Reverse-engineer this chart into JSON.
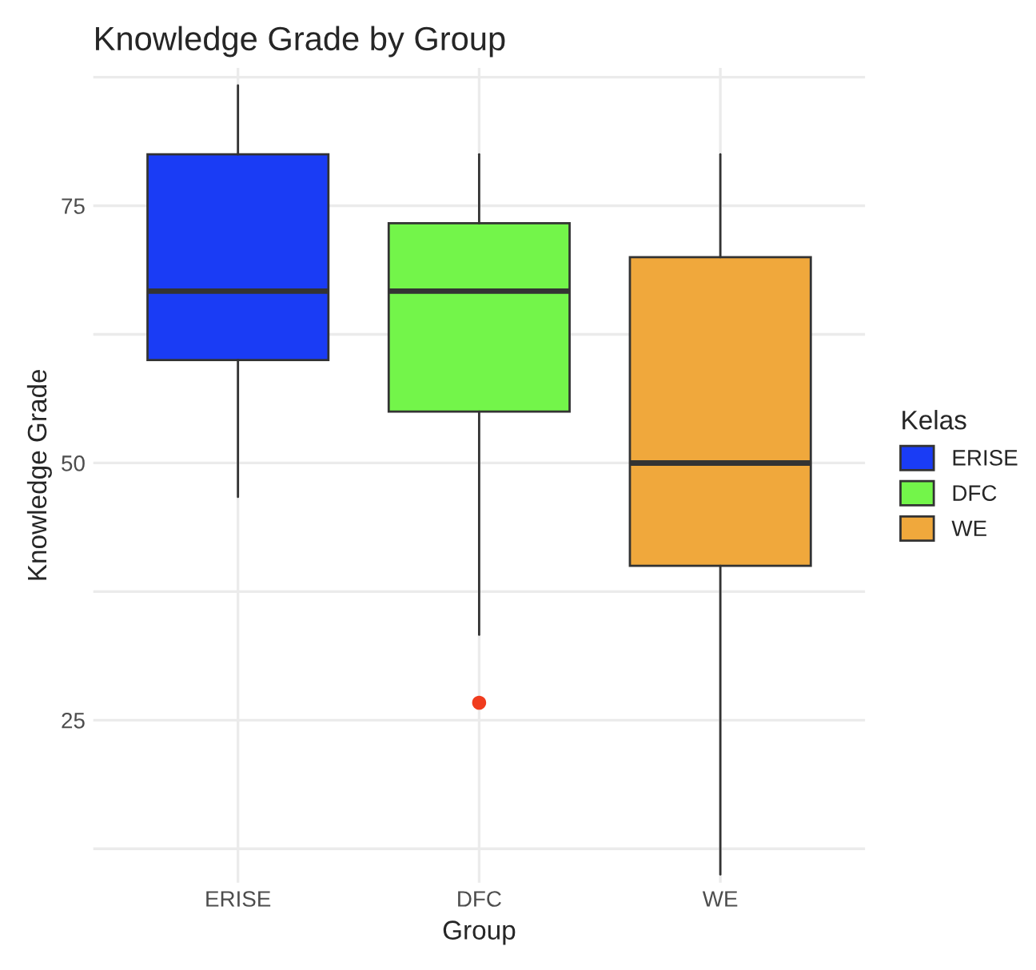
{
  "chart_data": {
    "type": "box",
    "title": "Knowledge Grade by Group",
    "xlabel": "Group",
    "ylabel": "Knowledge Grade",
    "legend_title": "Kelas",
    "categories": [
      "ERISE",
      "DFC",
      "WE"
    ],
    "series": [
      {
        "name": "ERISE",
        "color": "#1a3cf5",
        "boxes": [
          {
            "low": 46.7,
            "q1": 60,
            "median": 66.7,
            "q3": 80,
            "high": 86.7
          },
          null,
          null
        ]
      },
      {
        "name": "DFC",
        "color": "#73f54a",
        "boxes": [
          null,
          {
            "low": 33.3,
            "q1": 55,
            "median": 66.7,
            "q3": 73.3,
            "high": 80
          },
          null
        ]
      },
      {
        "name": "WE",
        "color": "#f0a83c",
        "boxes": [
          null,
          null,
          {
            "low": 10,
            "q1": 40,
            "median": 50,
            "q3": 70,
            "high": 80
          }
        ]
      },
      {
        "type": "scatter",
        "color": "#f03c1e",
        "x": [
          "DFC"
        ],
        "values": [
          26.7
        ]
      }
    ],
    "ylim": [
      9.2,
      88.4
    ],
    "yticks": [
      {
        "value": 12.5,
        "label": null
      },
      25,
      {
        "value": 37.5,
        "label": null
      },
      50,
      {
        "value": 62.5,
        "label": null
      },
      75,
      {
        "value": 87.5,
        "label": null
      }
    ],
    "grid": true,
    "legend": "right"
  }
}
